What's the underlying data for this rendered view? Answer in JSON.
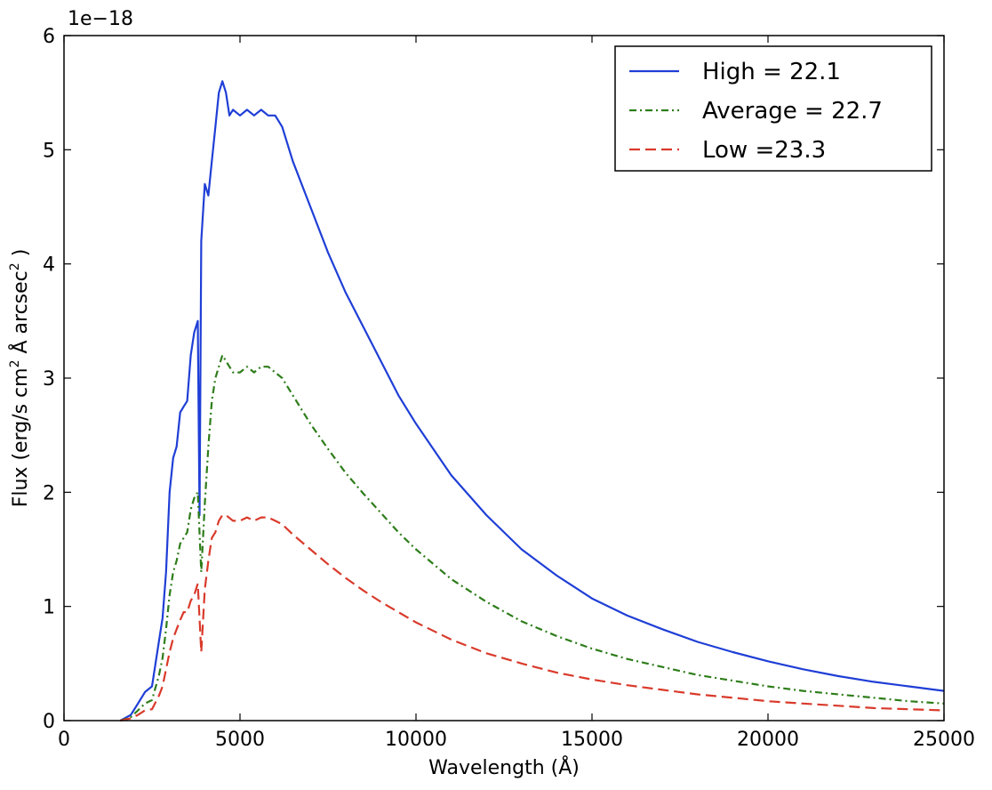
{
  "chart_data": {
    "type": "line",
    "xlabel": "Wavelength (Å)",
    "ylabel_parts": {
      "prefix": "Flux (erg/s cm",
      "sup1": "2",
      "mid": " Å arcsec",
      "sup2": "2",
      "suffix": " )"
    },
    "y_offset_label": "1e−18",
    "xlim": [
      0,
      25000
    ],
    "ylim": [
      0,
      6
    ],
    "x_ticks": [
      0,
      5000,
      10000,
      15000,
      20000,
      25000
    ],
    "x_tick_labels": [
      "0",
      "5000",
      "10000",
      "15000",
      "20000",
      "25000"
    ],
    "y_ticks": [
      0,
      1,
      2,
      3,
      4,
      5,
      6
    ],
    "y_tick_labels": [
      "0",
      "1",
      "2",
      "3",
      "4",
      "5",
      "6"
    ],
    "legend_position": "top-right",
    "grid": false,
    "series": [
      {
        "name": "High = 22.1",
        "color": "#1f3fd6",
        "style": "solid",
        "x": [
          1600,
          1900,
          2100,
          2300,
          2500,
          2700,
          2800,
          2900,
          3000,
          3100,
          3200,
          3300,
          3400,
          3500,
          3600,
          3700,
          3800,
          3850,
          3900,
          4000,
          4100,
          4200,
          4300,
          4400,
          4500,
          4600,
          4700,
          4800,
          5000,
          5200,
          5400,
          5600,
          5800,
          6000,
          6200,
          6500,
          7000,
          7500,
          8000,
          8500,
          9000,
          9500,
          10000,
          11000,
          12000,
          13000,
          14000,
          15000,
          16000,
          17000,
          18000,
          19000,
          20000,
          21000,
          22000,
          23000,
          24000,
          25000
        ],
        "values": [
          0.0,
          0.05,
          0.15,
          0.25,
          0.3,
          0.7,
          0.9,
          1.3,
          2.0,
          2.3,
          2.4,
          2.7,
          2.75,
          2.8,
          3.2,
          3.4,
          3.5,
          1.8,
          4.2,
          4.7,
          4.6,
          4.9,
          5.2,
          5.5,
          5.6,
          5.5,
          5.3,
          5.35,
          5.3,
          5.35,
          5.3,
          5.35,
          5.3,
          5.3,
          5.2,
          4.9,
          4.5,
          4.1,
          3.75,
          3.45,
          3.15,
          2.85,
          2.6,
          2.15,
          1.8,
          1.5,
          1.27,
          1.07,
          0.92,
          0.8,
          0.69,
          0.6,
          0.52,
          0.45,
          0.39,
          0.34,
          0.3,
          0.26
        ]
      },
      {
        "name": "Average = 22.7",
        "color": "#2e7d1a",
        "style": "dashdot",
        "x": [
          1600,
          1900,
          2100,
          2300,
          2500,
          2700,
          2800,
          2900,
          3000,
          3100,
          3200,
          3300,
          3400,
          3500,
          3600,
          3700,
          3800,
          3900,
          4000,
          4100,
          4200,
          4300,
          4400,
          4500,
          4600,
          4800,
          5000,
          5200,
          5400,
          5600,
          5800,
          6000,
          6200,
          6500,
          7000,
          7500,
          8000,
          8500,
          9000,
          9500,
          10000,
          11000,
          12000,
          13000,
          14000,
          15000,
          16000,
          17000,
          18000,
          19000,
          20000,
          21000,
          22000,
          23000,
          24000,
          25000
        ],
        "values": [
          0.0,
          0.03,
          0.09,
          0.15,
          0.18,
          0.4,
          0.55,
          0.8,
          1.1,
          1.3,
          1.4,
          1.55,
          1.6,
          1.65,
          1.85,
          1.95,
          2.0,
          1.3,
          1.9,
          2.4,
          2.8,
          3.0,
          3.1,
          3.2,
          3.15,
          3.05,
          3.05,
          3.1,
          3.05,
          3.1,
          3.1,
          3.05,
          3.0,
          2.85,
          2.6,
          2.38,
          2.17,
          1.99,
          1.82,
          1.65,
          1.5,
          1.24,
          1.04,
          0.87,
          0.74,
          0.63,
          0.54,
          0.47,
          0.4,
          0.35,
          0.3,
          0.26,
          0.23,
          0.2,
          0.17,
          0.15
        ]
      },
      {
        "name": "Low =23.3",
        "color": "#d93a2b",
        "style": "dashed",
        "x": [
          1600,
          1900,
          2100,
          2300,
          2500,
          2700,
          2800,
          2900,
          3000,
          3100,
          3200,
          3300,
          3400,
          3500,
          3600,
          3700,
          3800,
          3900,
          4000,
          4100,
          4200,
          4300,
          4400,
          4500,
          4600,
          4800,
          5000,
          5200,
          5400,
          5600,
          5800,
          6000,
          6200,
          6500,
          7000,
          7500,
          8000,
          8500,
          9000,
          9500,
          10000,
          11000,
          12000,
          13000,
          14000,
          15000,
          16000,
          17000,
          18000,
          19000,
          20000,
          21000,
          22000,
          23000,
          24000,
          25000
        ],
        "values": [
          0.0,
          0.02,
          0.05,
          0.09,
          0.1,
          0.22,
          0.3,
          0.45,
          0.6,
          0.72,
          0.8,
          0.88,
          0.95,
          0.95,
          1.05,
          1.1,
          1.2,
          0.6,
          1.15,
          1.4,
          1.6,
          1.65,
          1.75,
          1.8,
          1.8,
          1.75,
          1.75,
          1.78,
          1.75,
          1.78,
          1.78,
          1.75,
          1.72,
          1.63,
          1.5,
          1.37,
          1.25,
          1.14,
          1.04,
          0.95,
          0.86,
          0.71,
          0.59,
          0.5,
          0.42,
          0.36,
          0.31,
          0.27,
          0.23,
          0.2,
          0.17,
          0.15,
          0.13,
          0.11,
          0.1,
          0.09
        ]
      }
    ]
  }
}
